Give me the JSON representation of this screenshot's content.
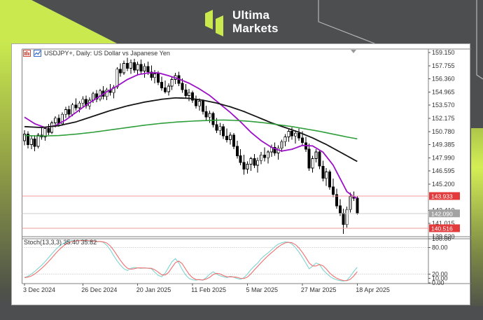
{
  "brand": {
    "line1": "Ultima",
    "line2": "Markets"
  },
  "chart": {
    "title": "USDJPY+, Daily:  US Dollar vs Japanese Yen",
    "indicator_label": "Stoch(13,3,3) 35.40 35.82",
    "price_ticks": [
      "159.150",
      "157.755",
      "156.360",
      "154.965",
      "153.570",
      "152.175",
      "150.780",
      "149.385",
      "147.990",
      "146.595",
      "145.200",
      "142.410",
      "141.015"
    ],
    "boundary_label": "139.620",
    "sub_ticks": [
      {
        "v": 100,
        "label": "100.00"
      },
      {
        "v": 80,
        "label": "80.00"
      },
      {
        "v": 20,
        "label": "20.00"
      },
      {
        "v": 10,
        "label": "10.00"
      },
      {
        "v": 0,
        "label": "0.00"
      }
    ],
    "sub_levels": [
      80,
      20
    ],
    "date_ticks": [
      {
        "label": "3 Dec 2024",
        "i": 0
      },
      {
        "label": "26 Dec 2024",
        "i": 17
      },
      {
        "label": "20 Jan 2025",
        "i": 33
      },
      {
        "label": "11 Feb 2025",
        "i": 49
      },
      {
        "label": "5 Mar 2025",
        "i": 65
      },
      {
        "label": "27 Mar 2025",
        "i": 81
      },
      {
        "label": "18 Apr 2025",
        "i": 97
      }
    ],
    "price_lines": [
      {
        "price": 143.933,
        "label": "143.933",
        "badge": "#e33b3b",
        "line": "#ef9a9a"
      },
      {
        "price": 142.09,
        "label": "142.090",
        "badge": "#a3a3a3",
        "line": "#cccccc"
      },
      {
        "price": 140.516,
        "label": "140.516",
        "badge": "#e33b3b",
        "line": "#ef9a9a"
      }
    ],
    "colors": {
      "up": "#ffffff",
      "down": "#000000",
      "wick": "#000000",
      "border": "#808080",
      "grid_dotted": "#b8b8b8",
      "accent_green": "#c9e94f",
      "banner_gray": "#4c4e50"
    }
  },
  "chart_data": {
    "type": "candlestick",
    "symbol": "USDJPY+",
    "timeframe": "Daily",
    "description": "US Dollar vs Japanese Yen",
    "price_axis": {
      "min": 139.62,
      "max": 159.53,
      "tick_step": 1.395
    },
    "candles": [
      [
        149.8,
        150.9,
        149.3,
        150.5
      ],
      [
        150.5,
        150.8,
        149.0,
        149.4
      ],
      [
        149.4,
        150.3,
        148.9,
        150.0
      ],
      [
        150.0,
        150.4,
        148.7,
        149.2
      ],
      [
        149.2,
        150.6,
        149.0,
        150.4
      ],
      [
        150.4,
        151.2,
        149.9,
        150.2
      ],
      [
        150.2,
        151.3,
        149.8,
        151.1
      ],
      [
        151.1,
        151.6,
        150.4,
        150.7
      ],
      [
        150.7,
        151.9,
        150.5,
        151.7
      ],
      [
        151.7,
        152.4,
        151.2,
        152.2
      ],
      [
        152.2,
        152.6,
        151.3,
        151.6
      ],
      [
        151.6,
        152.8,
        151.4,
        152.6
      ],
      [
        152.6,
        153.4,
        152.2,
        153.1
      ],
      [
        153.1,
        153.5,
        152.3,
        152.6
      ],
      [
        152.6,
        153.8,
        152.4,
        153.6
      ],
      [
        153.6,
        154.3,
        153.0,
        153.3
      ],
      [
        153.3,
        154.0,
        152.8,
        153.8
      ],
      [
        153.8,
        154.5,
        153.4,
        154.2
      ],
      [
        154.2,
        154.6,
        153.2,
        153.5
      ],
      [
        153.5,
        154.4,
        153.1,
        154.1
      ],
      [
        154.1,
        155.0,
        153.8,
        154.8
      ],
      [
        154.8,
        155.2,
        153.9,
        154.2
      ],
      [
        154.2,
        155.3,
        154.0,
        155.1
      ],
      [
        155.1,
        155.6,
        154.2,
        154.5
      ],
      [
        154.5,
        155.4,
        154.1,
        155.2
      ],
      [
        155.2,
        155.8,
        154.6,
        154.9
      ],
      [
        154.9,
        155.7,
        154.3,
        155.5
      ],
      [
        155.5,
        157.6,
        155.3,
        157.4
      ],
      [
        157.4,
        158.0,
        156.6,
        157.0
      ],
      [
        157.0,
        158.3,
        156.8,
        158.0
      ],
      [
        158.0,
        158.6,
        157.2,
        157.5
      ],
      [
        157.5,
        158.4,
        156.9,
        158.1
      ],
      [
        158.1,
        158.5,
        157.0,
        157.3
      ],
      [
        157.3,
        158.2,
        156.7,
        157.9
      ],
      [
        157.9,
        158.4,
        156.9,
        157.2
      ],
      [
        157.2,
        158.0,
        156.5,
        157.7
      ],
      [
        157.7,
        158.2,
        156.8,
        157.1
      ],
      [
        157.1,
        157.8,
        156.2,
        156.5
      ],
      [
        156.5,
        157.3,
        155.9,
        156.9
      ],
      [
        156.9,
        157.2,
        155.7,
        156.0
      ],
      [
        156.0,
        156.6,
        155.1,
        155.4
      ],
      [
        155.4,
        156.2,
        154.8,
        155.0
      ],
      [
        155.0,
        155.9,
        154.6,
        155.6
      ],
      [
        155.6,
        156.6,
        155.2,
        156.3
      ],
      [
        156.3,
        157.0,
        155.8,
        156.7
      ],
      [
        156.7,
        157.1,
        155.6,
        155.9
      ],
      [
        155.9,
        156.4,
        154.9,
        155.2
      ],
      [
        155.2,
        155.8,
        154.3,
        154.6
      ],
      [
        154.6,
        155.3,
        154.0,
        154.9
      ],
      [
        154.9,
        155.1,
        153.8,
        154.1
      ],
      [
        154.1,
        154.6,
        153.2,
        153.5
      ],
      [
        153.5,
        154.3,
        153.0,
        154.0
      ],
      [
        154.0,
        154.2,
        152.6,
        152.9
      ],
      [
        152.9,
        153.5,
        152.0,
        152.3
      ],
      [
        152.3,
        153.0,
        151.7,
        152.7
      ],
      [
        152.7,
        152.9,
        151.2,
        151.5
      ],
      [
        151.5,
        152.2,
        150.6,
        150.9
      ],
      [
        150.9,
        151.7,
        150.4,
        151.3
      ],
      [
        151.3,
        151.6,
        150.0,
        150.3
      ],
      [
        150.3,
        151.1,
        149.6,
        149.9
      ],
      [
        149.9,
        150.7,
        149.4,
        150.4
      ],
      [
        150.4,
        150.6,
        148.9,
        149.2
      ],
      [
        149.2,
        149.8,
        147.9,
        148.2
      ],
      [
        148.2,
        148.9,
        147.2,
        147.5
      ],
      [
        147.5,
        148.3,
        146.2,
        146.8
      ],
      [
        146.8,
        147.6,
        146.3,
        147.3
      ],
      [
        147.3,
        148.1,
        146.6,
        147.9
      ],
      [
        147.9,
        148.4,
        146.9,
        147.2
      ],
      [
        147.2,
        148.0,
        146.4,
        147.7
      ],
      [
        147.7,
        148.6,
        147.3,
        148.3
      ],
      [
        148.3,
        149.1,
        147.6,
        148.0
      ],
      [
        148.0,
        148.8,
        147.4,
        148.6
      ],
      [
        148.6,
        149.4,
        148.1,
        149.1
      ],
      [
        149.1,
        149.6,
        148.2,
        148.5
      ],
      [
        148.5,
        149.3,
        147.8,
        149.0
      ],
      [
        149.0,
        149.9,
        148.6,
        149.7
      ],
      [
        149.7,
        150.5,
        149.2,
        150.2
      ],
      [
        150.2,
        151.0,
        149.7,
        150.8
      ],
      [
        150.8,
        151.2,
        149.9,
        150.3
      ],
      [
        150.3,
        150.9,
        149.5,
        150.6
      ],
      [
        150.6,
        151.1,
        149.8,
        150.1
      ],
      [
        150.1,
        150.8,
        149.3,
        149.6
      ],
      [
        149.6,
        150.2,
        148.6,
        148.9
      ],
      [
        148.9,
        149.5,
        146.6,
        146.9
      ],
      [
        146.9,
        148.2,
        146.4,
        147.9
      ],
      [
        147.9,
        148.9,
        147.5,
        148.6
      ],
      [
        148.6,
        148.8,
        146.8,
        147.1
      ],
      [
        147.1,
        147.7,
        145.5,
        145.8
      ],
      [
        145.8,
        146.9,
        145.0,
        146.5
      ],
      [
        146.5,
        146.7,
        144.6,
        144.9
      ],
      [
        144.9,
        145.8,
        143.8,
        144.1
      ],
      [
        144.1,
        144.7,
        142.6,
        142.9
      ],
      [
        142.9,
        143.6,
        141.8,
        142.1
      ],
      [
        142.1,
        142.6,
        139.9,
        140.9
      ],
      [
        140.9,
        142.8,
        140.6,
        142.5
      ],
      [
        142.5,
        144.3,
        142.2,
        143.9
      ],
      [
        143.9,
        144.4,
        143.4,
        143.7
      ],
      [
        143.7,
        143.9,
        141.97,
        142.09
      ]
    ],
    "overlays": [
      {
        "name": "ma-fast-purple",
        "color": "#9c10c7",
        "width": 1.8,
        "anchors": [
          [
            0,
            152.3
          ],
          [
            3,
            151.6
          ],
          [
            6,
            151.2
          ],
          [
            9,
            151.4
          ],
          [
            12,
            152.0
          ],
          [
            15,
            152.8
          ],
          [
            18,
            153.6
          ],
          [
            21,
            154.3
          ],
          [
            24,
            155.0
          ],
          [
            27,
            155.6
          ],
          [
            30,
            156.3
          ],
          [
            33,
            156.8
          ],
          [
            36,
            157.0
          ],
          [
            39,
            157.0
          ],
          [
            42,
            156.7
          ],
          [
            45,
            156.35
          ],
          [
            48,
            155.9
          ],
          [
            51,
            155.3
          ],
          [
            54,
            154.6
          ],
          [
            57,
            153.7
          ],
          [
            60,
            152.8
          ],
          [
            63,
            151.8
          ],
          [
            66,
            150.7
          ],
          [
            69,
            149.8
          ],
          [
            72,
            149.1
          ],
          [
            75,
            148.7
          ],
          [
            78,
            148.9
          ],
          [
            81,
            149.3
          ],
          [
            84,
            149.25
          ],
          [
            87,
            148.6
          ],
          [
            90,
            147.2
          ],
          [
            92,
            145.8
          ],
          [
            94,
            144.4
          ],
          [
            96,
            143.85
          ],
          [
            97,
            143.7
          ]
        ]
      },
      {
        "name": "ma-mid-black",
        "color": "#151515",
        "width": 1.8,
        "anchors": [
          [
            0,
            151.3
          ],
          [
            5,
            151.2
          ],
          [
            10,
            151.4
          ],
          [
            15,
            151.8
          ],
          [
            20,
            152.4
          ],
          [
            25,
            153.0
          ],
          [
            30,
            153.5
          ],
          [
            35,
            153.9
          ],
          [
            40,
            154.2
          ],
          [
            44,
            154.35
          ],
          [
            48,
            154.3
          ],
          [
            52,
            154.1
          ],
          [
            56,
            153.8
          ],
          [
            60,
            153.4
          ],
          [
            64,
            152.9
          ],
          [
            68,
            152.3
          ],
          [
            72,
            151.7
          ],
          [
            76,
            151.2
          ],
          [
            80,
            150.7
          ],
          [
            84,
            150.1
          ],
          [
            88,
            149.4
          ],
          [
            92,
            148.6
          ],
          [
            95,
            148.0
          ],
          [
            97,
            147.6
          ]
        ]
      },
      {
        "name": "ma-slow-green",
        "color": "#2e9e3a",
        "width": 1.6,
        "anchors": [
          [
            0,
            150.35
          ],
          [
            5,
            150.3
          ],
          [
            10,
            150.35
          ],
          [
            15,
            150.5
          ],
          [
            20,
            150.7
          ],
          [
            25,
            150.95
          ],
          [
            30,
            151.2
          ],
          [
            35,
            151.45
          ],
          [
            40,
            151.65
          ],
          [
            45,
            151.8
          ],
          [
            50,
            151.9
          ],
          [
            55,
            151.97
          ],
          [
            58,
            152.0
          ],
          [
            62,
            151.95
          ],
          [
            66,
            151.85
          ],
          [
            70,
            151.7
          ],
          [
            74,
            151.5
          ],
          [
            78,
            151.3
          ],
          [
            82,
            151.05
          ],
          [
            86,
            150.8
          ],
          [
            90,
            150.5
          ],
          [
            94,
            150.2
          ],
          [
            97,
            150.0
          ]
        ]
      }
    ],
    "stochastic": {
      "label": "Stoch(13,3,3)",
      "current_k": 35.4,
      "current_d": 35.82,
      "k_color": "#7fd4cf",
      "d_color": "#ef6f6f",
      "levels": [
        80,
        20
      ],
      "range": [
        0,
        100
      ],
      "k": [
        12,
        15,
        20,
        26,
        33,
        40,
        48,
        57,
        66,
        75,
        82,
        88,
        92,
        95,
        96,
        95,
        96,
        97,
        95,
        94,
        95,
        93,
        94,
        92,
        85,
        75,
        62,
        50,
        40,
        32,
        28,
        33,
        35,
        34,
        33,
        34,
        33,
        32,
        24,
        17,
        14,
        22,
        35,
        48,
        55,
        45,
        30,
        18,
        10,
        7,
        6,
        8,
        6,
        12,
        20,
        25,
        20,
        16,
        14,
        12,
        15,
        13,
        10,
        8,
        12,
        20,
        30,
        38,
        45,
        55,
        62,
        68,
        75,
        82,
        88,
        91,
        93,
        92,
        88,
        80,
        70,
        58,
        45,
        32,
        38,
        45,
        42,
        30,
        22,
        15,
        10,
        7,
        5,
        4,
        6,
        15,
        26,
        35.4
      ]
    }
  }
}
